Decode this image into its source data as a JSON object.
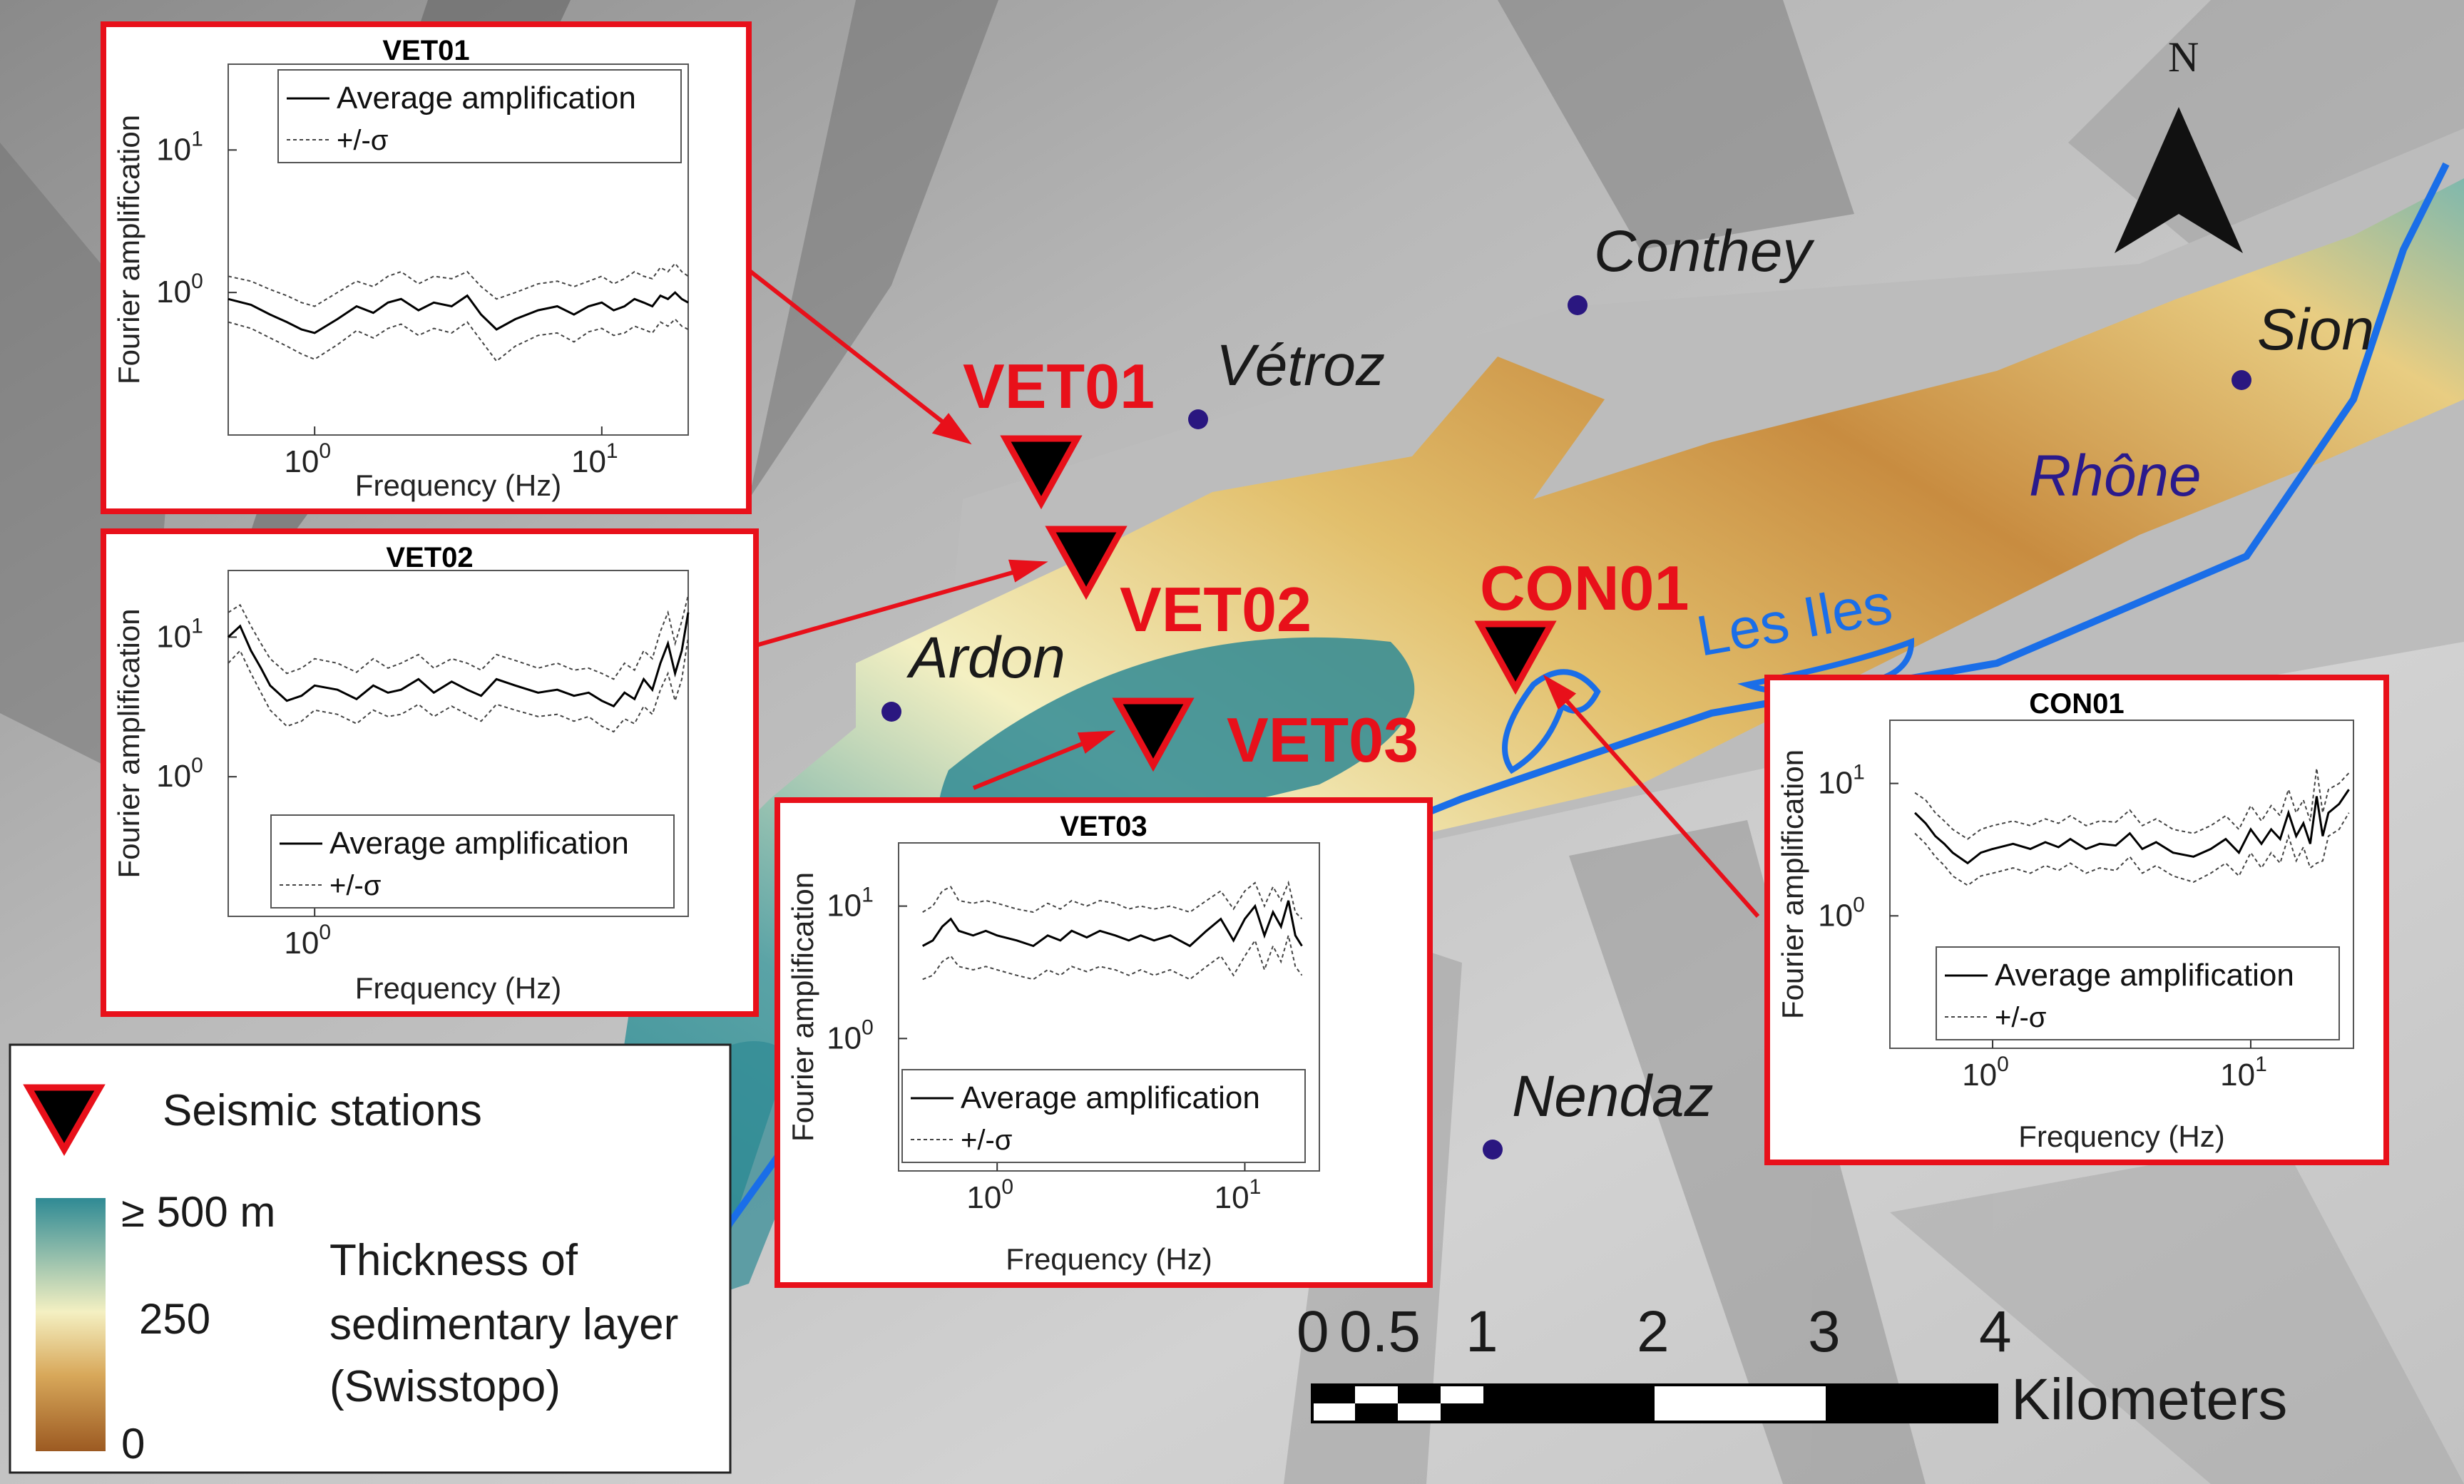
{
  "map": {
    "north_label": "N",
    "places": [
      "Conthey",
      "Vétroz",
      "Sion",
      "Ardon",
      "Nendaz"
    ],
    "water": {
      "river": "Rhône",
      "lake": "Les Iles"
    },
    "stations": [
      "VET01",
      "VET02",
      "VET03",
      "CON01"
    ]
  },
  "legend": {
    "stations_label": "Seismic stations",
    "scale_top": "≥ 500 m",
    "scale_mid": "250",
    "scale_bottom": "0",
    "thickness_line1": "Thickness of",
    "thickness_line2": "sedimentary layer",
    "thickness_line3": "(Swisstopo)"
  },
  "scalebar": {
    "ticks": [
      "0",
      "0.5",
      "1",
      "2",
      "3",
      "4"
    ],
    "unit": "Kilometers"
  },
  "colors": {
    "station_fill": "#000000",
    "station_outline": "#e8101a",
    "station_label": "#e8101a",
    "river": "#1a6ee8",
    "river_label": "#2a1a8c",
    "town_dot": "#2a1780",
    "inset_border": "#e8101a",
    "sediment_deep": "#2f8a94",
    "sediment_mid": "#f4f0c2",
    "sediment_shallow": "#9c5a22"
  },
  "chart_data": [
    {
      "type": "line",
      "title": "VET01",
      "xlabel": "Frequency (Hz)",
      "ylabel": "Fourier amplification",
      "xscale": "log",
      "yscale": "log",
      "xlim": [
        0.5,
        20
      ],
      "ylim": [
        0.1,
        40
      ],
      "xticks": [
        {
          "v": 1,
          "base": "10",
          "exp": "0"
        },
        {
          "v": 10,
          "base": "10",
          "exp": "1"
        }
      ],
      "yticks": [
        {
          "v": 1,
          "base": "10",
          "exp": "0"
        },
        {
          "v": 10,
          "base": "10",
          "exp": "1"
        }
      ],
      "legend": [
        "Average amplification",
        "+/-σ"
      ],
      "legend_position": "top",
      "x": [
        0.5,
        0.6,
        0.7,
        0.8,
        0.9,
        1.0,
        1.2,
        1.4,
        1.6,
        1.8,
        2.0,
        2.3,
        2.6,
        3.0,
        3.4,
        3.8,
        4.3,
        5.0,
        6.0,
        7.0,
        8.0,
        9.0,
        10,
        11,
        12,
        13,
        14,
        15,
        16,
        17,
        18,
        19,
        20
      ],
      "series": [
        {
          "name": "Average amplification",
          "values": [
            0.9,
            0.82,
            0.7,
            0.62,
            0.55,
            0.52,
            0.65,
            0.8,
            0.72,
            0.85,
            0.9,
            0.75,
            0.85,
            0.8,
            0.95,
            0.7,
            0.55,
            0.65,
            0.75,
            0.8,
            0.7,
            0.8,
            0.85,
            0.75,
            0.8,
            0.9,
            0.85,
            0.8,
            0.95,
            0.9,
            1.0,
            0.9,
            0.85
          ]
        },
        {
          "name": "+/-σ upper",
          "values": [
            1.3,
            1.2,
            1.05,
            0.95,
            0.85,
            0.8,
            1.0,
            1.2,
            1.1,
            1.3,
            1.4,
            1.15,
            1.3,
            1.25,
            1.4,
            1.1,
            0.9,
            1.0,
            1.15,
            1.2,
            1.1,
            1.2,
            1.3,
            1.15,
            1.25,
            1.4,
            1.3,
            1.25,
            1.5,
            1.4,
            1.6,
            1.4,
            1.3
          ]
        },
        {
          "name": "+/-σ lower",
          "values": [
            0.62,
            0.56,
            0.48,
            0.42,
            0.37,
            0.34,
            0.43,
            0.54,
            0.48,
            0.56,
            0.6,
            0.5,
            0.56,
            0.52,
            0.62,
            0.46,
            0.33,
            0.42,
            0.5,
            0.52,
            0.45,
            0.53,
            0.56,
            0.5,
            0.52,
            0.58,
            0.55,
            0.52,
            0.62,
            0.58,
            0.65,
            0.58,
            0.55
          ]
        }
      ]
    },
    {
      "type": "line",
      "title": "VET02",
      "xlabel": "Frequency (Hz)",
      "ylabel": "Fourier amplification",
      "xscale": "log",
      "yscale": "log",
      "xlim": [
        0.5,
        20
      ],
      "ylim": [
        0.1,
        30
      ],
      "xticks": [
        {
          "v": 1,
          "base": "10",
          "exp": "0"
        }
      ],
      "yticks": [
        {
          "v": 1,
          "base": "10",
          "exp": "0"
        },
        {
          "v": 10,
          "base": "10",
          "exp": "1"
        }
      ],
      "legend": [
        "Average amplification",
        "+/-σ"
      ],
      "legend_position": "bottom",
      "x": [
        0.5,
        0.55,
        0.6,
        0.65,
        0.7,
        0.8,
        0.9,
        1.0,
        1.2,
        1.4,
        1.6,
        1.8,
        2.0,
        2.3,
        2.6,
        3.0,
        3.4,
        3.8,
        4.3,
        5.0,
        6.0,
        7.0,
        8.0,
        9.0,
        10,
        11,
        12,
        13,
        14,
        15,
        16,
        17,
        18,
        19,
        20
      ],
      "series": [
        {
          "name": "Average amplification",
          "values": [
            10,
            12,
            8,
            6,
            4.5,
            3.5,
            3.8,
            4.5,
            4.2,
            3.6,
            4.5,
            4.0,
            4.2,
            5.0,
            4.0,
            4.8,
            4.2,
            3.8,
            5.0,
            4.5,
            4.0,
            4.2,
            3.8,
            4.0,
            3.5,
            3.2,
            4.0,
            3.6,
            5.0,
            4.2,
            6.5,
            9,
            5.5,
            8,
            15
          ]
        },
        {
          "name": "+/-σ upper",
          "values": [
            15,
            17,
            12,
            9,
            7,
            5.5,
            6,
            7,
            6.5,
            5.6,
            7,
            6,
            6.5,
            7.5,
            6,
            7,
            6.5,
            5.8,
            7.5,
            6.8,
            6,
            6.5,
            5.8,
            6,
            5.5,
            5,
            6.5,
            5.8,
            8,
            7,
            11,
            15,
            9,
            13,
            20
          ]
        },
        {
          "name": "+/-σ lower",
          "values": [
            6.5,
            8,
            5.5,
            4,
            3,
            2.3,
            2.5,
            3,
            2.8,
            2.4,
            3,
            2.7,
            2.8,
            3.3,
            2.7,
            3.2,
            2.8,
            2.5,
            3.3,
            3,
            2.7,
            2.8,
            2.5,
            2.7,
            2.3,
            2.1,
            2.6,
            2.4,
            3.2,
            2.8,
            4.2,
            5.5,
            3.5,
            5,
            10
          ]
        }
      ]
    },
    {
      "type": "line",
      "title": "VET03",
      "xlabel": "Frequency (Hz)",
      "ylabel": "Fourier amplification",
      "xscale": "log",
      "yscale": "log",
      "xlim": [
        0.4,
        20
      ],
      "ylim": [
        0.1,
        30
      ],
      "xticks": [
        {
          "v": 1,
          "base": "10",
          "exp": "0"
        },
        {
          "v": 10,
          "base": "10",
          "exp": "1"
        }
      ],
      "yticks": [
        {
          "v": 1,
          "base": "10",
          "exp": "0"
        },
        {
          "v": 10,
          "base": "10",
          "exp": "1"
        }
      ],
      "legend": [
        "Average amplification",
        "+/-σ"
      ],
      "legend_position": "bottom",
      "x": [
        0.5,
        0.55,
        0.6,
        0.65,
        0.7,
        0.8,
        0.9,
        1.0,
        1.2,
        1.4,
        1.6,
        1.8,
        2.0,
        2.3,
        2.6,
        3.0,
        3.4,
        3.8,
        4.3,
        5.0,
        6.0,
        7.0,
        8.0,
        9.0,
        10,
        11,
        12,
        13,
        14,
        15,
        16,
        17
      ],
      "series": [
        {
          "name": "Average amplification",
          "values": [
            5,
            5.5,
            7,
            8,
            6.5,
            6,
            6.5,
            6,
            5.5,
            5,
            6,
            5.5,
            6.5,
            5.8,
            6.5,
            6,
            5.5,
            6,
            5.5,
            6,
            5,
            6.5,
            8,
            5.5,
            8,
            10,
            6,
            9,
            7,
            11,
            6,
            5
          ]
        },
        {
          "name": "+/-σ upper",
          "values": [
            9,
            10,
            13,
            14,
            11,
            10.5,
            11,
            10.5,
            9.5,
            9,
            10.5,
            9.5,
            11,
            10,
            11,
            10.5,
            9.5,
            10,
            9.5,
            10,
            9,
            11,
            13,
            9.5,
            13,
            15,
            10,
            14,
            11,
            15,
            9,
            8
          ]
        },
        {
          "name": "+/-σ lower",
          "values": [
            2.8,
            3,
            3.8,
            4.2,
            3.5,
            3.3,
            3.5,
            3.3,
            3,
            2.8,
            3.3,
            3,
            3.5,
            3.2,
            3.5,
            3.3,
            3,
            3.3,
            3,
            3.3,
            2.8,
            3.5,
            4.2,
            3,
            4.2,
            5.5,
            3.3,
            5,
            3.8,
            6,
            3.5,
            3
          ]
        }
      ]
    },
    {
      "type": "line",
      "title": "CON01",
      "xlabel": "Frequency (Hz)",
      "ylabel": "Fourier amplification",
      "xscale": "log",
      "yscale": "log",
      "xlim": [
        0.4,
        25
      ],
      "ylim": [
        0.1,
        30
      ],
      "xticks": [
        {
          "v": 1,
          "base": "10",
          "exp": "0"
        },
        {
          "v": 10,
          "base": "10",
          "exp": "1"
        }
      ],
      "yticks": [
        {
          "v": 1,
          "base": "10",
          "exp": "0"
        },
        {
          "v": 10,
          "base": "10",
          "exp": "1"
        }
      ],
      "legend": [
        "Average amplification",
        "+/-σ"
      ],
      "legend_position": "bottom",
      "x": [
        0.5,
        0.55,
        0.6,
        0.65,
        0.7,
        0.8,
        0.9,
        1.0,
        1.2,
        1.4,
        1.6,
        1.8,
        2.0,
        2.3,
        2.6,
        3.0,
        3.4,
        3.8,
        4.3,
        5.0,
        6.0,
        7.0,
        8.0,
        9.0,
        10,
        11,
        12,
        13,
        14,
        15,
        16,
        17,
        18,
        19,
        20,
        22,
        24
      ],
      "series": [
        {
          "name": "Average amplification",
          "values": [
            6,
            5,
            4,
            3.5,
            3,
            2.5,
            3,
            3.2,
            3.5,
            3.2,
            3.6,
            3.3,
            3.8,
            3.2,
            3.5,
            3.4,
            4.2,
            3.2,
            3.6,
            3,
            2.8,
            3.2,
            3.8,
            3,
            4.5,
            3.5,
            4.5,
            3.8,
            6,
            4,
            5,
            3.5,
            8,
            4,
            6,
            7,
            9
          ]
        },
        {
          "name": "+/-σ upper",
          "values": [
            8.5,
            7.5,
            6,
            5.2,
            4.5,
            3.8,
            4.5,
            4.8,
            5.2,
            4.8,
            5.4,
            5,
            5.7,
            4.8,
            5.2,
            5.1,
            6.3,
            4.8,
            5.4,
            4.5,
            4.2,
            4.8,
            5.7,
            4.5,
            6.8,
            5.2,
            6.8,
            5.7,
            9,
            6,
            7.5,
            5.2,
            13,
            6,
            9,
            10,
            12
          ]
        },
        {
          "name": "+/-σ lower",
          "values": [
            4.2,
            3.5,
            2.8,
            2.4,
            2,
            1.7,
            2,
            2.1,
            2.3,
            2.1,
            2.4,
            2.2,
            2.5,
            2.1,
            2.3,
            2.2,
            2.8,
            2.1,
            2.4,
            2,
            1.8,
            2.1,
            2.5,
            2,
            3,
            2.3,
            3,
            2.5,
            4,
            2.6,
            3.3,
            2.3,
            2.5,
            2.6,
            4,
            4.5,
            6
          ]
        }
      ]
    }
  ]
}
